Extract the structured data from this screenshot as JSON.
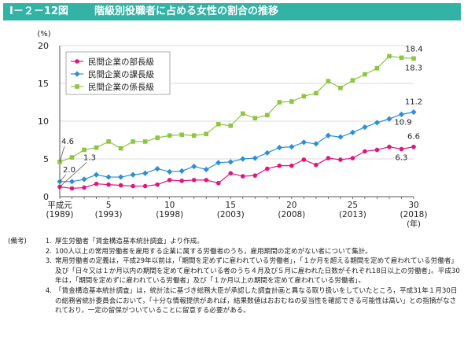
{
  "figure": {
    "number": "Ⅰ－２－12図",
    "title": "階級別役職者に占める女性の割合の推移"
  },
  "chart_data": {
    "type": "line",
    "ylabel": "(%)",
    "xunit": "(年)",
    "ylim": [
      0,
      20
    ],
    "yticks": [
      0,
      5,
      10,
      15,
      20
    ],
    "x": [
      1989,
      1990,
      1991,
      1992,
      1993,
      1994,
      1995,
      1996,
      1997,
      1998,
      1999,
      2000,
      2001,
      2002,
      2003,
      2004,
      2005,
      2006,
      2007,
      2008,
      2009,
      2010,
      2011,
      2012,
      2013,
      2014,
      2015,
      2016,
      2017,
      2018
    ],
    "xticks": [
      {
        "x": 1989,
        "line1": "平成元",
        "line2": "(1989)"
      },
      {
        "x": 1993,
        "line1": "5",
        "line2": "(1993)"
      },
      {
        "x": 1998,
        "line1": "10",
        "line2": "(1998)"
      },
      {
        "x": 2003,
        "line1": "15",
        "line2": "(2003)"
      },
      {
        "x": 2008,
        "line1": "20",
        "line2": "(2008)"
      },
      {
        "x": 2013,
        "line1": "25",
        "line2": "(2013)"
      },
      {
        "x": 2018,
        "line1": "30",
        "line2": "(2018)"
      }
    ],
    "grid": true,
    "legend_position": "top-left",
    "series": [
      {
        "name": "民間企業の部長級",
        "color": "#e0157f",
        "marker": "circle",
        "values": [
          1.3,
          1.1,
          1.2,
          1.7,
          1.6,
          1.5,
          1.4,
          1.4,
          1.6,
          2.2,
          2.1,
          2.2,
          2.2,
          1.8,
          3.1,
          2.7,
          2.8,
          3.7,
          4.1,
          4.1,
          4.9,
          4.2,
          5.1,
          4.9,
          5.1,
          6.0,
          6.2,
          6.6,
          6.3,
          6.6
        ]
      },
      {
        "name": "民間企業の課長級",
        "color": "#2a8fd6",
        "marker": "diamond",
        "values": [
          2.0,
          2.0,
          2.3,
          2.9,
          2.6,
          2.6,
          2.9,
          3.1,
          3.7,
          3.3,
          3.4,
          4.0,
          3.6,
          4.5,
          4.6,
          5.0,
          5.1,
          5.8,
          6.5,
          6.6,
          7.2,
          7.0,
          8.1,
          7.9,
          8.5,
          9.2,
          9.8,
          10.3,
          10.9,
          11.2
        ]
      },
      {
        "name": "民間企業の係長級",
        "color": "#8dc63f",
        "marker": "square",
        "values": [
          4.6,
          5.2,
          6.2,
          6.5,
          7.3,
          6.4,
          7.3,
          7.3,
          7.8,
          8.1,
          8.2,
          8.1,
          8.3,
          9.6,
          9.4,
          11.0,
          10.4,
          10.8,
          12.5,
          12.6,
          13.3,
          13.7,
          15.3,
          14.4,
          15.4,
          16.2,
          17.0,
          18.6,
          18.4,
          18.3
        ]
      }
    ],
    "annotations": [
      {
        "text": "4.6",
        "series": 2,
        "index": 0
      },
      {
        "text": "2.0",
        "series": 1,
        "index": 0
      },
      {
        "text": "1.3",
        "series": 0,
        "index": 0
      },
      {
        "text": "18.4",
        "series": 2,
        "index": 28
      },
      {
        "text": "18.3",
        "series": 2,
        "index": 29
      },
      {
        "text": "11.2",
        "series": 1,
        "index": 29
      },
      {
        "text": "10.9",
        "series": 1,
        "index": 28
      },
      {
        "text": "6.6",
        "series": 0,
        "index": 29
      },
      {
        "text": "6.3",
        "series": 0,
        "index": 28
      }
    ]
  },
  "notes": {
    "label": "(備考)",
    "items": [
      {
        "num": "1.",
        "text": "厚生労働者「賃金構造基本統計調査」より作成。"
      },
      {
        "num": "2.",
        "text": "100人以上の常用労働者を雇用する企業に属する労働者のうち，雇用期間の定めがない者について集計。"
      },
      {
        "num": "3.",
        "text": "常用労働者の定義は，平成29年以前は，「期間を定めずに雇われている労働者」，「１か月を超える期間を定めて雇われている労働者」及び「日々又は１か月以内の期間を定めて雇われている者のうち４月及び５月に雇われた日数がそれぞれ18日以上の労働者」。平成30年は，「期間を定めずに雇われている労働者」及び「１か月以上の期間を定めて雇われている労働者」。"
      },
      {
        "num": "4.",
        "text": "「賃金構造基本統計調査」は，統計法に基づき総務大臣が承認した調査計画と異なる取り扱いをしていたところ，平成31年１月30日の総務省統計委員会において，「十分な情報提供があれば，結果数値はおおむねの妥当性を確認できる可能性は高い」との指摘がなされており，一定の留保がついていることに留意する必要がある。"
      }
    ]
  }
}
